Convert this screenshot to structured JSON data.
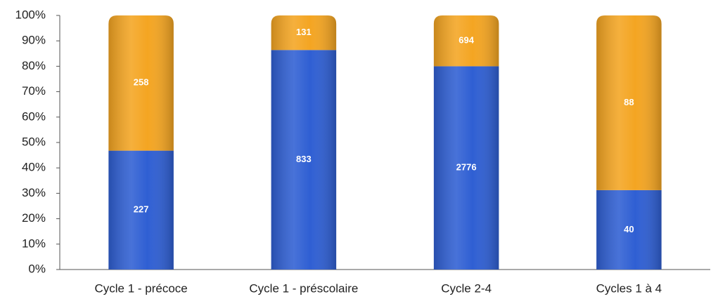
{
  "chart_data": {
    "type": "bar",
    "stacked": "percent",
    "categories": [
      "Cycle 1 - précoce",
      "Cycle 1 - préscolaire",
      "Cycle 2-4",
      "Cycles 1 à 4"
    ],
    "series": [
      {
        "color": "#2f5fd3",
        "values": [
          227,
          833,
          2776,
          40
        ]
      },
      {
        "color": "#f4a522",
        "values": [
          258,
          131,
          694,
          88
        ]
      }
    ],
    "ylim": [
      0,
      100
    ],
    "yticks": [
      {
        "value": 0,
        "label": "0%"
      },
      {
        "value": 10,
        "label": "10%"
      },
      {
        "value": 20,
        "label": "20%"
      },
      {
        "value": 30,
        "label": "30%"
      },
      {
        "value": 40,
        "label": "40%"
      },
      {
        "value": 50,
        "label": "50%"
      },
      {
        "value": 60,
        "label": "60%"
      },
      {
        "value": 70,
        "label": "70%"
      },
      {
        "value": 80,
        "label": "80%"
      },
      {
        "value": 90,
        "label": "90%"
      },
      {
        "value": 100,
        "label": "100%"
      }
    ],
    "grid": false
  }
}
